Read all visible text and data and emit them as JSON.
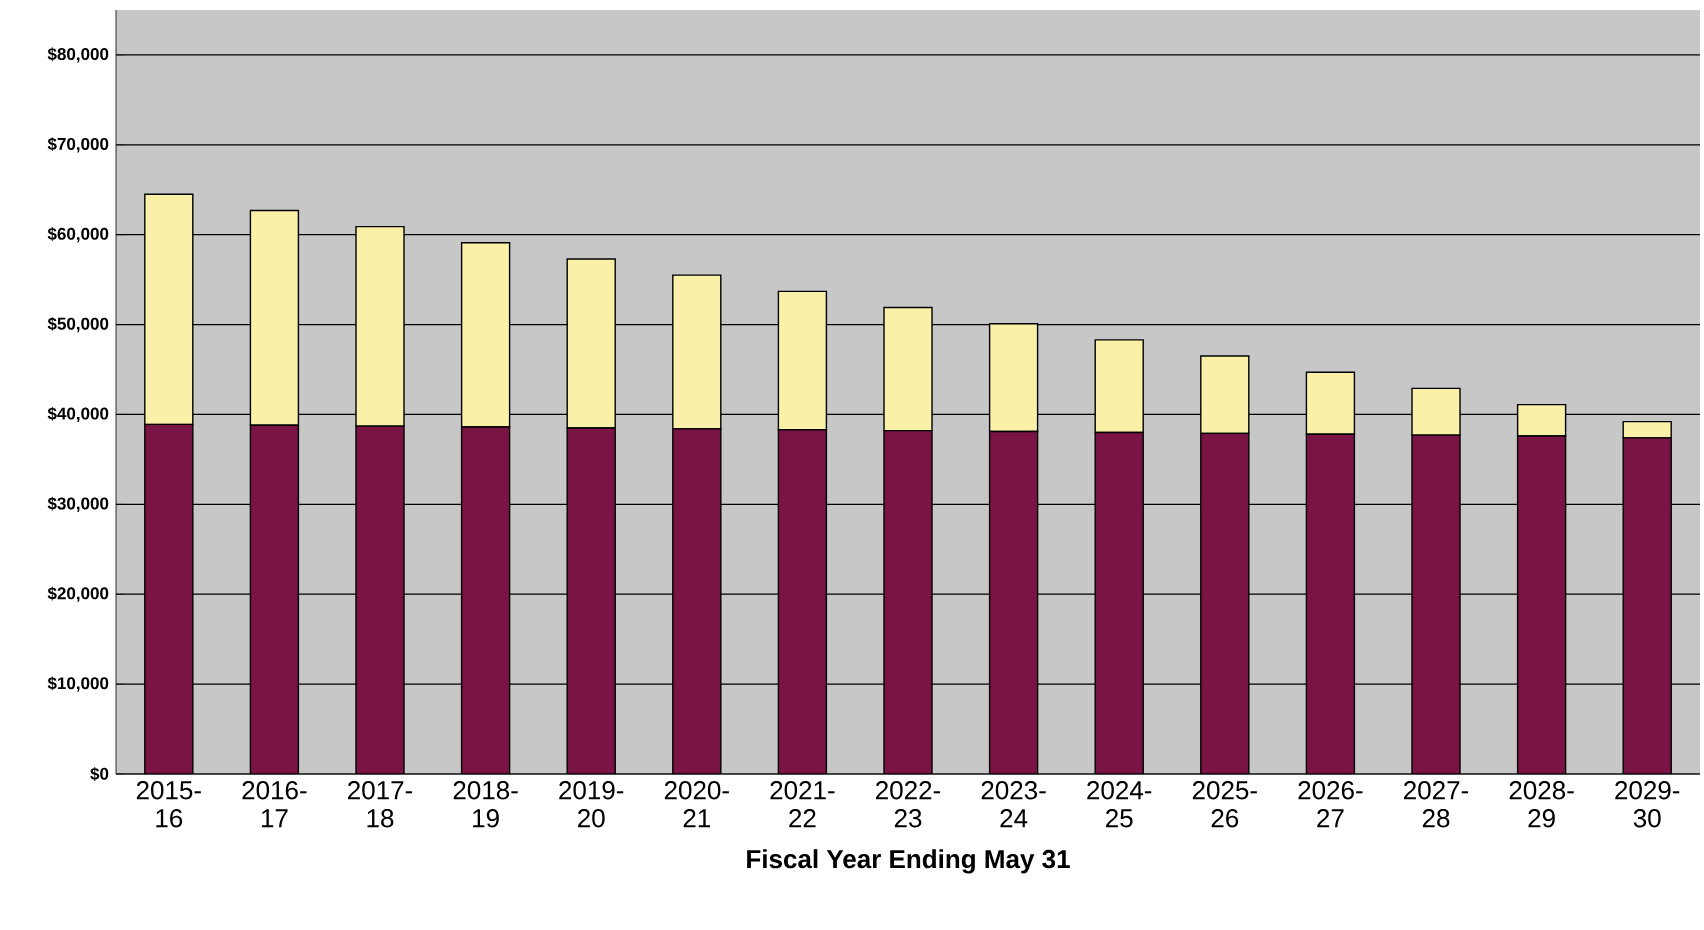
{
  "chart_data": {
    "type": "bar",
    "stacked": true,
    "xlabel": "Fiscal Year Ending May 31",
    "categories": [
      "2015-16",
      "2016-17",
      "2017-18",
      "2018-19",
      "2019-20",
      "2020-21",
      "2021-22",
      "2022-23",
      "2023-24",
      "2024-25",
      "2025-26",
      "2026-27",
      "2027-28",
      "2028-29",
      "2029-30"
    ],
    "series": [
      {
        "color": "#7a1444",
        "values": [
          38900,
          38800,
          38700,
          38600,
          38500,
          38400,
          38300,
          38200,
          38100,
          38000,
          37900,
          37800,
          37700,
          37600,
          37400
        ]
      },
      {
        "color": "#fbf0a8",
        "values": [
          25600,
          23900,
          22200,
          20500,
          18800,
          17100,
          15400,
          13700,
          12000,
          10300,
          8600,
          6900,
          5200,
          3500,
          1800
        ]
      }
    ],
    "ylim": [
      0,
      85000
    ],
    "yticks": [
      {
        "value": 0,
        "label": "$0"
      },
      {
        "value": 10000,
        "label": "$10,000"
      },
      {
        "value": 20000,
        "label": "$20,000"
      },
      {
        "value": 30000,
        "label": "$30,000"
      },
      {
        "value": 40000,
        "label": "$40,000"
      },
      {
        "value": 50000,
        "label": "$50,000"
      },
      {
        "value": 60000,
        "label": "$60,000"
      },
      {
        "value": 70000,
        "label": "$70,000"
      },
      {
        "value": 80000,
        "label": "$80,000"
      }
    ],
    "grid": "y"
  }
}
